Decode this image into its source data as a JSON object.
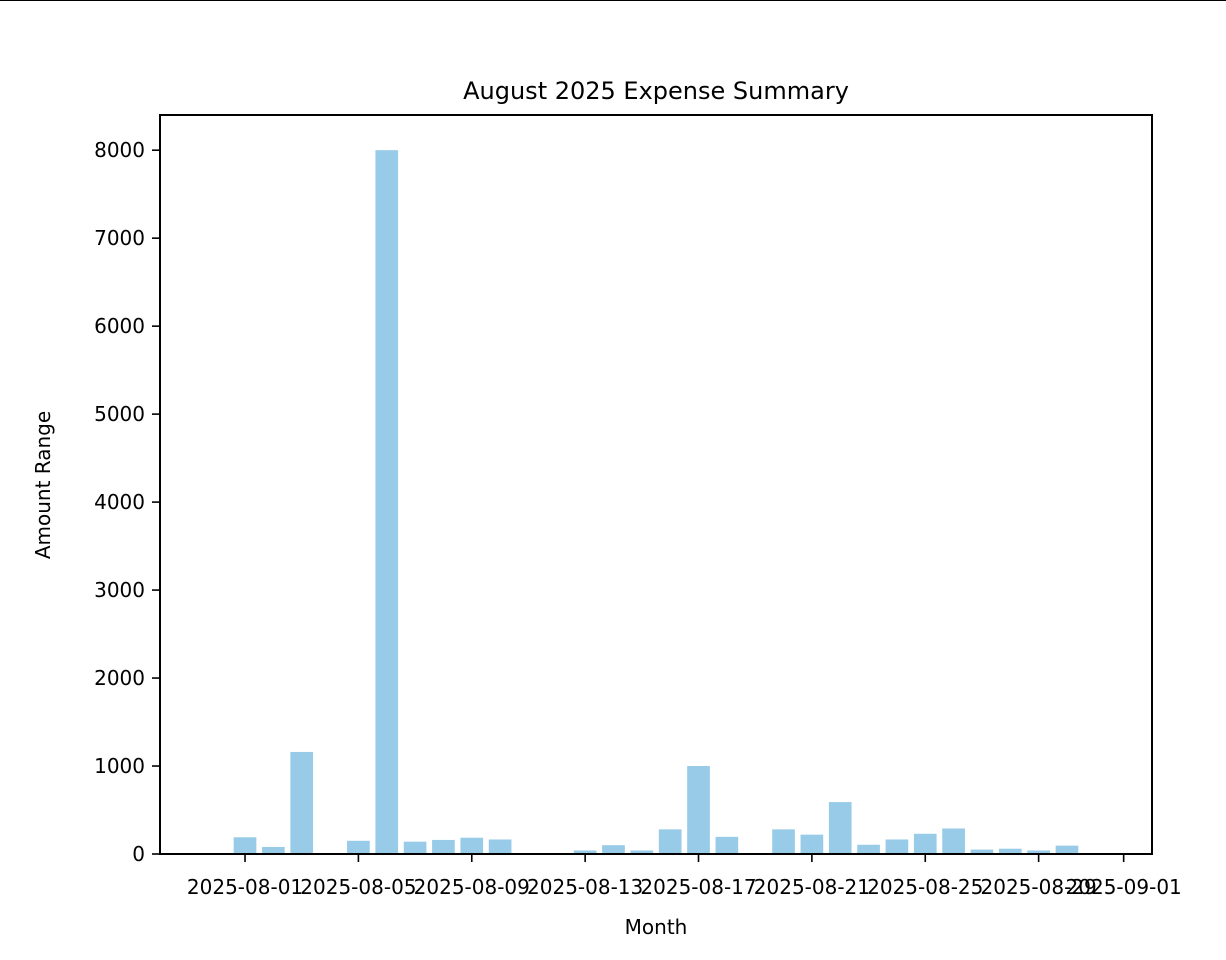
{
  "chart_data": {
    "type": "bar",
    "title": "August 2025 Expense Summary",
    "xlabel": "Month",
    "ylabel": "Amount Range",
    "bar_color": "#97cbe7",
    "ylim": [
      0,
      8400
    ],
    "xlim": [
      "2025-07-29",
      "2025-09-02"
    ],
    "yticks": [
      0,
      1000,
      2000,
      3000,
      4000,
      5000,
      6000,
      7000,
      8000
    ],
    "xticks": [
      "2025-08-01",
      "2025-08-05",
      "2025-08-09",
      "2025-08-13",
      "2025-08-17",
      "2025-08-21",
      "2025-08-25",
      "2025-08-29",
      "2025-09-01"
    ],
    "grid": false,
    "x": [
      "2025-08-01",
      "2025-08-02",
      "2025-08-03",
      "2025-08-05",
      "2025-08-06",
      "2025-08-07",
      "2025-08-08",
      "2025-08-09",
      "2025-08-10",
      "2025-08-13",
      "2025-08-14",
      "2025-08-15",
      "2025-08-16",
      "2025-08-17",
      "2025-08-18",
      "2025-08-20",
      "2025-08-21",
      "2025-08-22",
      "2025-08-23",
      "2025-08-24",
      "2025-08-25",
      "2025-08-26",
      "2025-08-27",
      "2025-08-28",
      "2025-08-29",
      "2025-08-30",
      "2025-08-31"
    ],
    "values": [
      190,
      80,
      1160,
      150,
      8000,
      140,
      160,
      185,
      165,
      40,
      100,
      40,
      280,
      1000,
      195,
      280,
      220,
      590,
      105,
      165,
      230,
      290,
      50,
      60,
      40,
      95,
      10
    ]
  }
}
